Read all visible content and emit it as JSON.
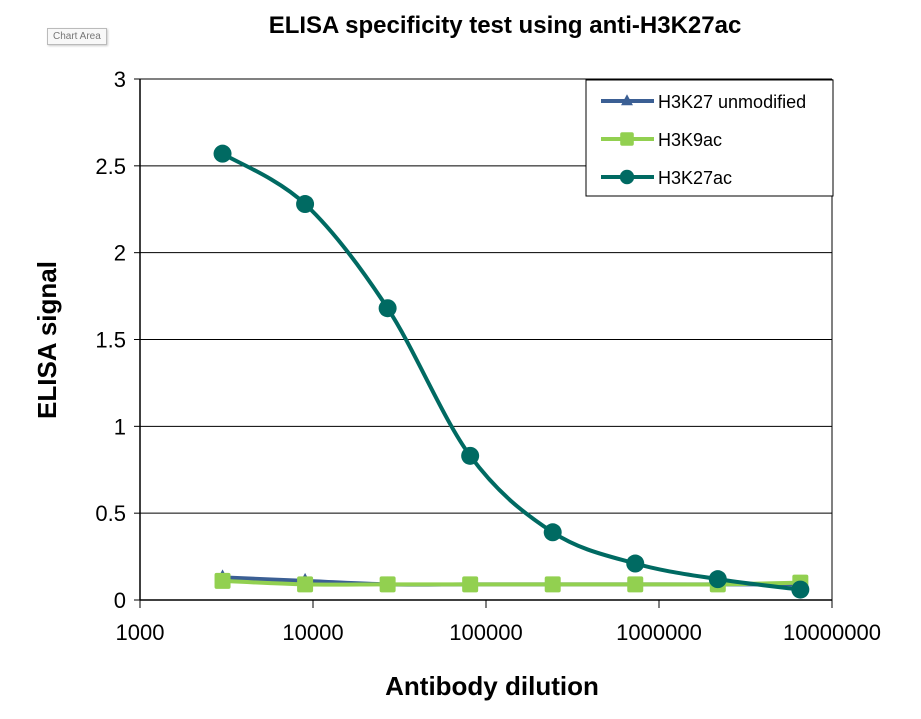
{
  "tooltip": "Chart Area",
  "chart_data": {
    "type": "line",
    "title": "ELISA specificity test using anti-H3K27ac",
    "xlabel": "Antibody dilution",
    "ylabel": "ELISA  signal",
    "xscale": "log",
    "xlim": [
      1000,
      10000000
    ],
    "ylim": [
      0,
      3
    ],
    "xticks": [
      "1000",
      "10000",
      "100000",
      "1000000",
      "10000000"
    ],
    "yticks": [
      "0",
      "0.5",
      "1",
      "1.5",
      "2",
      "2.5",
      "3"
    ],
    "grid": "horizontal",
    "legend_position": "top-right",
    "x": [
      3000,
      9000,
      27000,
      81000,
      243000,
      729000,
      2187000,
      6561000
    ],
    "series": [
      {
        "name": "H3K27 unmodified",
        "color": "#3B5F94",
        "marker": "triangle",
        "values": [
          0.13,
          0.11,
          0.09,
          0.09,
          0.09,
          0.09,
          0.09,
          0.09
        ]
      },
      {
        "name": "H3K9ac",
        "color": "#92D050",
        "marker": "square",
        "values": [
          0.11,
          0.09,
          0.09,
          0.09,
          0.09,
          0.09,
          0.09,
          0.1
        ]
      },
      {
        "name": "H3K27ac",
        "color": "#006A62",
        "marker": "circle",
        "values": [
          2.57,
          2.28,
          1.68,
          0.83,
          0.39,
          0.21,
          0.12,
          0.06
        ]
      }
    ]
  }
}
